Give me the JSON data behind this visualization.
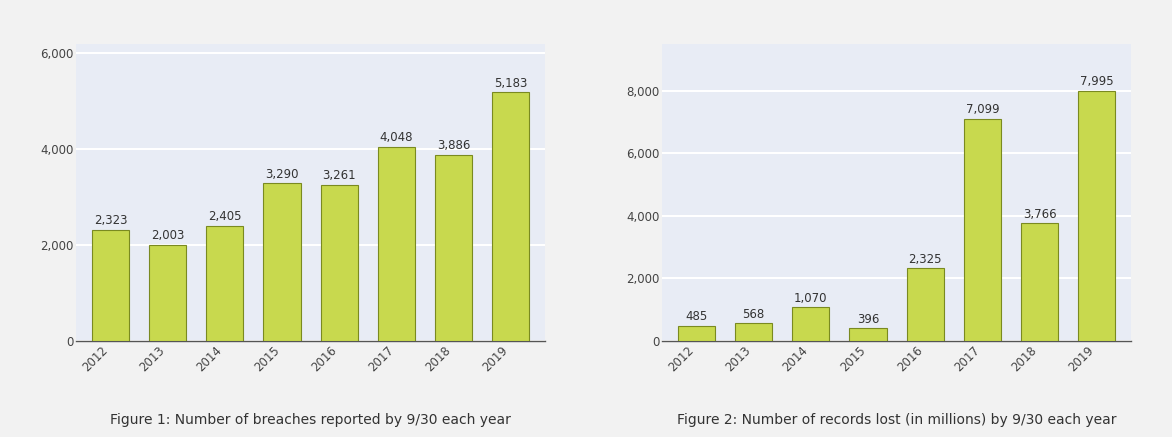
{
  "fig1": {
    "years": [
      "2012",
      "2013",
      "2014",
      "2015",
      "2016",
      "2017",
      "2018",
      "2019"
    ],
    "values": [
      2323,
      2003,
      2405,
      3290,
      3261,
      4048,
      3886,
      5183
    ],
    "labels": [
      "2,323",
      "2,003",
      "2,405",
      "3,290",
      "3,261",
      "4,048",
      "3,886",
      "5,183"
    ],
    "ylim": [
      0,
      6200
    ],
    "yticks": [
      0,
      2000,
      4000,
      6000
    ],
    "caption": "Figure 1: Number of breaches reported by 9/30 each year"
  },
  "fig2": {
    "years": [
      "2012",
      "2013",
      "2014",
      "2015",
      "2016",
      "2017",
      "2018",
      "2019"
    ],
    "values": [
      485,
      568,
      1070,
      396,
      2325,
      7099,
      3766,
      7995
    ],
    "labels": [
      "485",
      "568",
      "1,070",
      "396",
      "2,325",
      "7,099",
      "3,766",
      "7,995"
    ],
    "ylim": [
      0,
      9500
    ],
    "yticks": [
      0,
      2000,
      4000,
      6000,
      8000
    ],
    "caption": "Figure 2: Number of records lost (in millions) by 9/30 each year"
  },
  "bar_color": "#c8d94e",
  "bar_edge_color": "#7a8a20",
  "bar_width": 0.65,
  "background_color": "#e8ecf5",
  "fig_background": "#f2f2f2",
  "label_fontsize": 8.5,
  "tick_fontsize": 8.5,
  "caption_fontsize": 10,
  "grid_color": "#ffffff",
  "bar_edge_width": 0.8
}
